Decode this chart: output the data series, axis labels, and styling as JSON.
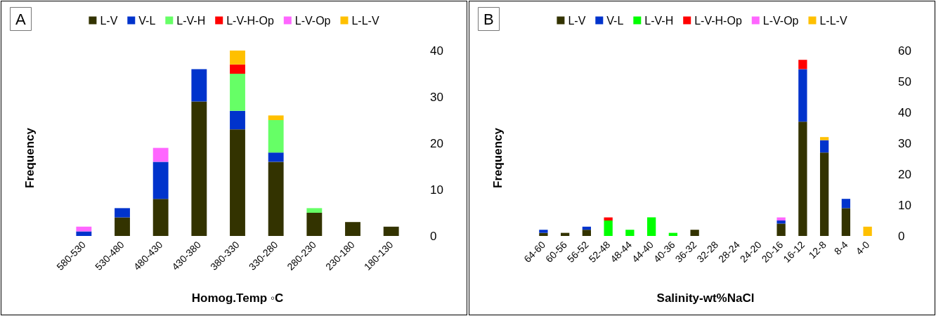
{
  "chart_data": [
    {
      "type": "bar",
      "title": "A",
      "xlabel": "Homog.Temp ◦C",
      "ylabel": "Frequency",
      "stacked": true,
      "legend": "top",
      "categories": [
        "580-530",
        "530-480",
        "480-430",
        "430-380",
        "380-330",
        "330-280",
        "280-230",
        "230-180",
        "180-130"
      ],
      "ylim": [
        0,
        40
      ],
      "yticks": [
        0,
        10,
        20,
        30,
        40
      ],
      "series": [
        {
          "name": "L-V",
          "color": "#333300",
          "values": [
            null,
            4,
            8,
            29,
            23,
            16,
            5,
            3,
            2
          ]
        },
        {
          "name": "V-L",
          "color": "#0033cc",
          "values": [
            1,
            2,
            8,
            7,
            4,
            2,
            null,
            null,
            null
          ]
        },
        {
          "name": "L-V-H",
          "color": "#66ff66",
          "values": [
            null,
            null,
            null,
            null,
            8,
            7,
            1,
            null,
            null
          ]
        },
        {
          "name": "L-V-H-Op",
          "color": "#ff0000",
          "values": [
            null,
            null,
            null,
            null,
            2,
            null,
            null,
            null,
            null
          ]
        },
        {
          "name": "L-V-Op",
          "color": "#ff66ff",
          "values": [
            1,
            null,
            3,
            null,
            null,
            null,
            null,
            null,
            null
          ]
        },
        {
          "name": "L-L-V",
          "color": "#ffc000",
          "values": [
            null,
            null,
            null,
            null,
            3,
            1,
            null,
            null,
            null
          ]
        }
      ]
    },
    {
      "type": "bar",
      "title": "B",
      "xlabel": "Salinity-wt%NaCl",
      "ylabel": "Frequency",
      "stacked": true,
      "legend": "top",
      "categories": [
        "64-60",
        "60-56",
        "56-52",
        "52-48",
        "48-44",
        "44-40",
        "40-36",
        "36-32",
        "32-28",
        "28-24",
        "24-20",
        "20-16",
        "16-12",
        "12-8",
        "8-4",
        "4-0"
      ],
      "ylim": [
        0,
        60
      ],
      "yticks": [
        0,
        10,
        20,
        30,
        40,
        50,
        60
      ],
      "series": [
        {
          "name": "L-V",
          "color": "#333300",
          "values": [
            1,
            1,
            2,
            null,
            null,
            null,
            null,
            2,
            null,
            null,
            null,
            4,
            37,
            27,
            9,
            null
          ]
        },
        {
          "name": "V-L",
          "color": "#0033cc",
          "values": [
            1,
            null,
            1,
            null,
            null,
            null,
            null,
            null,
            null,
            null,
            null,
            1,
            17,
            4,
            3,
            null
          ]
        },
        {
          "name": "L-V-H",
          "color": "#00ff00",
          "values": [
            null,
            null,
            null,
            5,
            2,
            6,
            1,
            null,
            null,
            null,
            null,
            null,
            null,
            null,
            null,
            null
          ]
        },
        {
          "name": "L-V-H-Op",
          "color": "#ff0000",
          "values": [
            null,
            null,
            null,
            1,
            null,
            null,
            null,
            null,
            null,
            null,
            null,
            null,
            3,
            null,
            null,
            null
          ]
        },
        {
          "name": "L-V-Op",
          "color": "#ff66ff",
          "values": [
            null,
            null,
            null,
            null,
            null,
            null,
            null,
            null,
            null,
            null,
            null,
            1,
            null,
            null,
            null,
            null
          ]
        },
        {
          "name": "L-L-V",
          "color": "#ffc000",
          "values": [
            null,
            null,
            null,
            null,
            null,
            null,
            null,
            null,
            null,
            null,
            null,
            null,
            null,
            1,
            null,
            3
          ]
        }
      ]
    }
  ]
}
